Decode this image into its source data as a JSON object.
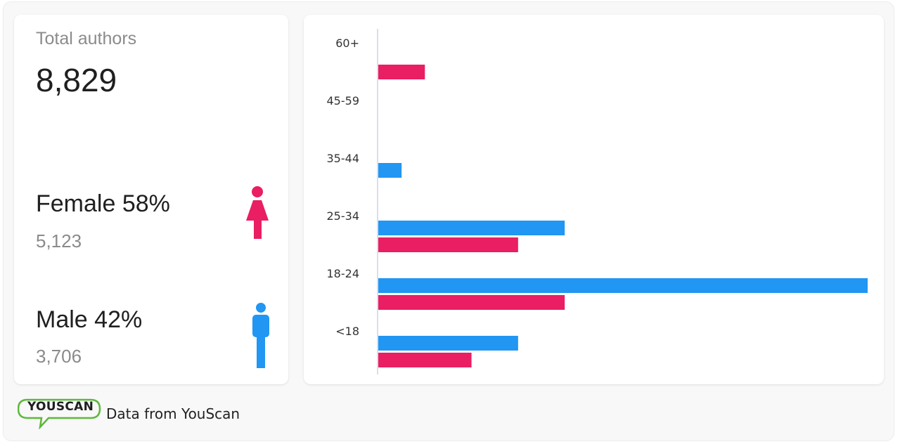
{
  "summary": {
    "total_label": "Total authors",
    "total_value": "8,829"
  },
  "gender": {
    "female": {
      "label": "Female",
      "percent": "58%",
      "count": "5,123"
    },
    "male": {
      "label": "Male",
      "percent": "42%",
      "count": "3,706"
    }
  },
  "colors": {
    "female": "#E91E63",
    "male": "#2196F3",
    "axis": "#c9d6e3"
  },
  "footer": {
    "brand": "YOUSCAN",
    "text": "Data from YouScan"
  },
  "chart_data": {
    "type": "bar",
    "orientation": "horizontal",
    "title": "",
    "xlabel": "",
    "ylabel": "",
    "categories": [
      "60+",
      "45-59",
      "35-44",
      "25-34",
      "18-24",
      "<18"
    ],
    "series": [
      {
        "name": "Male",
        "color": "#2196F3",
        "values": [
          0,
          0,
          3,
          24,
          63,
          18
        ]
      },
      {
        "name": "Female",
        "color": "#E91E63",
        "values": [
          6,
          0,
          0,
          18,
          24,
          12
        ]
      }
    ],
    "xlim": [
      0,
      63
    ],
    "grid": false,
    "legend": "none"
  }
}
